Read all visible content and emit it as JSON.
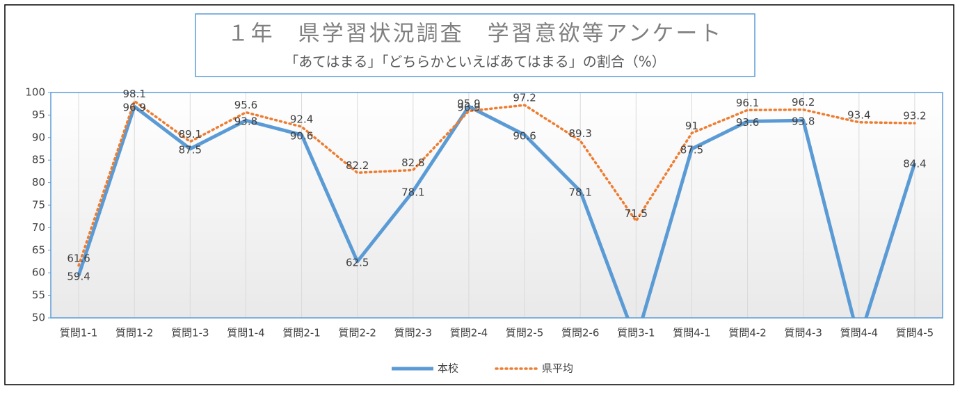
{
  "chart_data": {
    "type": "line",
    "title": "１年　県学習状況調査　学習意欲等アンケート",
    "subtitle": "「あてはまる」「どちらかといえばあてはまる」の割合（%）",
    "categories": [
      "質問1-1",
      "質問1-2",
      "質問1-3",
      "質問1-4",
      "質問2-1",
      "質問2-2",
      "質問2-3",
      "質問2-4",
      "質問2-5",
      "質問2-6",
      "質問3-1",
      "質問4-1",
      "質問4-2",
      "質問4-3",
      "質問4-4",
      "質問4-5"
    ],
    "series": [
      {
        "name": "本校",
        "color": "#5b9bd5",
        "style": "solid",
        "values": [
          59.4,
          96.9,
          87.5,
          93.8,
          90.6,
          62.5,
          78.1,
          96.9,
          90.6,
          78.1,
          45,
          87.5,
          93.6,
          93.8,
          45,
          84.4
        ]
      },
      {
        "name": "県平均",
        "color": "#ed7d31",
        "style": "dotted",
        "values": [
          61.6,
          98.1,
          89.1,
          95.6,
          92.4,
          82.2,
          82.8,
          95.9,
          97.2,
          89.3,
          71.5,
          91,
          96.1,
          96.2,
          93.4,
          93.2
        ]
      }
    ],
    "ylim": [
      50,
      100
    ],
    "yticks": [
      50,
      55,
      60,
      65,
      70,
      75,
      80,
      85,
      90,
      95,
      100
    ],
    "grid": true,
    "legend": "bottom"
  }
}
